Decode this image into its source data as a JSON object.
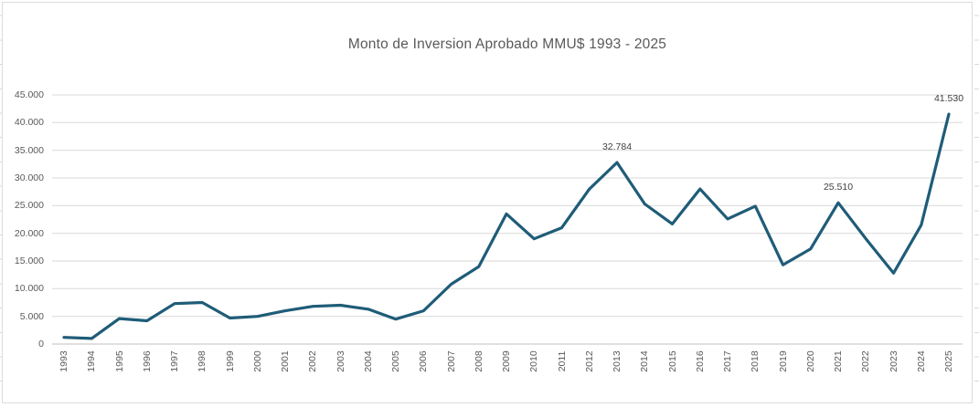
{
  "chart_data": {
    "type": "line",
    "title": "Monto de Inversion Aprobado MMU$ 1993 - 2025",
    "categories": [
      "1993",
      "1994",
      "1995",
      "1996",
      "1997",
      "1998",
      "1999",
      "2000",
      "2001",
      "2002",
      "2003",
      "2004",
      "2005",
      "2006",
      "2007",
      "2008",
      "2009",
      "2010",
      "2011",
      "2012",
      "2013",
      "2014",
      "2015",
      "2016",
      "2017",
      "2018",
      "2019",
      "2020",
      "2021",
      "2022",
      "2023",
      "2024",
      "2025"
    ],
    "values": [
      1200,
      1000,
      4600,
      4200,
      7300,
      7500,
      4700,
      5000,
      6000,
      6800,
      7000,
      6300,
      4500,
      6000,
      10800,
      14000,
      23500,
      19000,
      21000,
      28000,
      32784,
      25300,
      21700,
      28000,
      22600,
      24900,
      14300,
      17200,
      25510,
      19000,
      12800,
      21500,
      41530
    ],
    "xlabel": "",
    "ylabel": "",
    "ylim": [
      0,
      45000
    ],
    "yticks": [
      0,
      5000,
      10000,
      15000,
      20000,
      25000,
      30000,
      35000,
      40000,
      45000
    ],
    "ytick_labels": [
      "0",
      "5.000",
      "10.000",
      "15.000",
      "20.000",
      "25.000",
      "30.000",
      "35.000",
      "40.000",
      "45.000"
    ],
    "grid": true,
    "legend": "none",
    "annotations": [
      {
        "category": "2013",
        "label": "32.784"
      },
      {
        "category": "2021",
        "label": "25.510"
      },
      {
        "category": "2025",
        "label": "41.530"
      }
    ]
  },
  "colors": {
    "line": "#1f5c78",
    "gridline": "#d9d9d9",
    "axis_line": "#c0c0c0",
    "axis_text": "#595959",
    "title_text": "#595959",
    "annotation_text": "#404040",
    "chart_border": "#dcdcdc",
    "background": "#ffffff"
  }
}
